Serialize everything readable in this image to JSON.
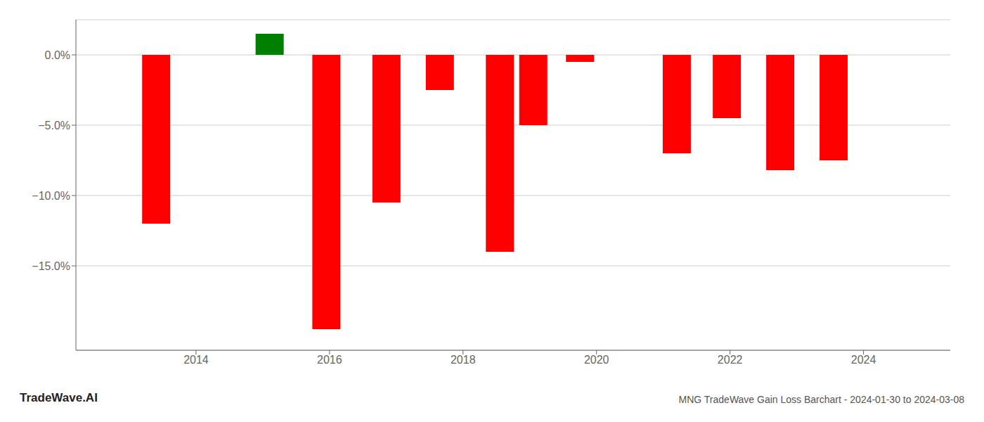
{
  "chart_data": {
    "type": "bar",
    "title": "MNG TradeWave Gain Loss Barchart - 2024-01-30 to 2024-03-08",
    "annotations": [
      "TradeWave.AI"
    ],
    "x": [
      2013.4,
      2015.1,
      2015.95,
      2016.85,
      2017.65,
      2018.55,
      2019.05,
      2019.75,
      2021.2,
      2021.95,
      2022.75,
      2023.55
    ],
    "values": [
      -12.0,
      1.5,
      -19.5,
      -10.5,
      -2.5,
      -14.0,
      -5.0,
      -0.5,
      -7.0,
      -4.5,
      -8.2,
      -7.5
    ],
    "colors": [
      "#ff0000",
      "#008000",
      "#ff0000",
      "#ff0000",
      "#ff0000",
      "#ff0000",
      "#ff0000",
      "#ff0000",
      "#ff0000",
      "#ff0000",
      "#ff0000",
      "#ff0000"
    ],
    "xlim": [
      2012.2,
      2025.3
    ],
    "ylim": [
      -21.0,
      2.5
    ],
    "xticks": [
      2014,
      2016,
      2018,
      2020,
      2022,
      2024
    ],
    "yticks": [
      {
        "value": 0.0,
        "label": "0.0%"
      },
      {
        "value": -5.0,
        "label": "−5.0%"
      },
      {
        "value": -10.0,
        "label": "−10.0%"
      },
      {
        "value": -15.0,
        "label": "−15.0%"
      }
    ],
    "grid": true
  }
}
